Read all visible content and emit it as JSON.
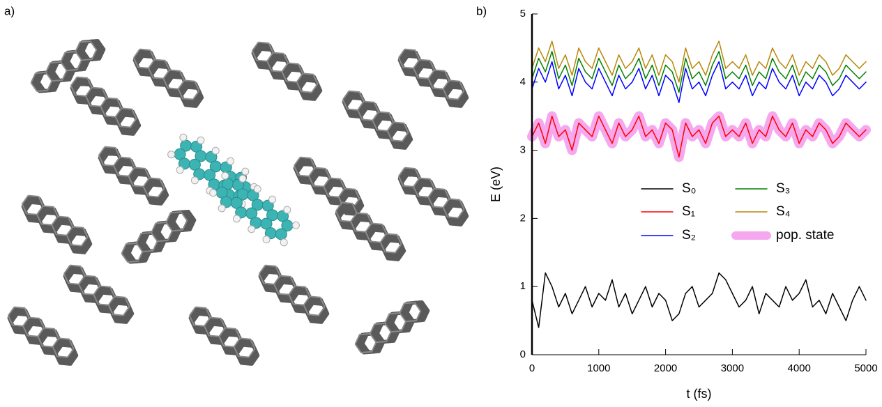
{
  "panel_labels": [
    "a)",
    "b)"
  ],
  "chart_data": {
    "type": "line",
    "xlabel": "t (fs)",
    "ylabel": "E (eV)",
    "xlim": [
      0,
      5000
    ],
    "ylim": [
      0,
      5
    ],
    "xticks": [
      0,
      1000,
      2000,
      3000,
      4000,
      5000
    ],
    "yticks": [
      0,
      1,
      2,
      3,
      4,
      5
    ],
    "x": [
      0,
      100,
      200,
      300,
      400,
      500,
      600,
      700,
      800,
      900,
      1000,
      1100,
      1200,
      1300,
      1400,
      1500,
      1600,
      1700,
      1800,
      1900,
      2000,
      2100,
      2200,
      2300,
      2400,
      2500,
      2600,
      2700,
      2800,
      2900,
      3000,
      3100,
      3200,
      3300,
      3400,
      3500,
      3600,
      3700,
      3800,
      3900,
      4000,
      4100,
      4200,
      4300,
      4400,
      4500,
      4600,
      4700,
      4800,
      4900,
      5000
    ],
    "series": [
      {
        "name": "S₀",
        "color": "#000000",
        "values": [
          0.8,
          0.4,
          1.2,
          1.0,
          0.7,
          0.9,
          0.6,
          0.8,
          1.0,
          0.7,
          0.9,
          0.8,
          1.1,
          0.7,
          0.9,
          0.6,
          0.8,
          1.0,
          0.7,
          0.9,
          0.8,
          0.5,
          0.6,
          0.9,
          1.0,
          0.7,
          0.8,
          0.9,
          1.2,
          1.1,
          0.9,
          0.7,
          0.8,
          1.0,
          0.6,
          0.9,
          0.8,
          0.7,
          1.0,
          0.8,
          0.9,
          1.1,
          0.7,
          0.8,
          0.6,
          0.9,
          0.7,
          0.5,
          0.8,
          1.0,
          0.8
        ]
      },
      {
        "name": "S₁",
        "color": "#ff0000",
        "values": [
          3.2,
          3.4,
          3.1,
          3.5,
          3.2,
          3.3,
          3.0,
          3.4,
          3.3,
          3.2,
          3.5,
          3.3,
          3.1,
          3.4,
          3.2,
          3.3,
          3.5,
          3.2,
          3.3,
          3.1,
          3.4,
          3.3,
          2.9,
          3.4,
          3.2,
          3.3,
          3.1,
          3.4,
          3.5,
          3.2,
          3.3,
          3.2,
          3.4,
          3.1,
          3.3,
          3.2,
          3.5,
          3.3,
          3.2,
          3.4,
          3.1,
          3.3,
          3.2,
          3.4,
          3.3,
          3.1,
          3.2,
          3.4,
          3.3,
          3.2,
          3.3
        ]
      },
      {
        "name": "S₂",
        "color": "#0000ff",
        "values": [
          3.9,
          4.2,
          4.0,
          4.3,
          3.9,
          4.1,
          3.8,
          4.2,
          4.0,
          3.9,
          4.2,
          4.0,
          3.8,
          4.1,
          3.9,
          4.0,
          4.2,
          3.9,
          4.1,
          3.8,
          4.1,
          4.0,
          3.7,
          4.2,
          3.9,
          4.0,
          3.8,
          4.1,
          4.3,
          3.9,
          4.0,
          3.9,
          4.1,
          3.8,
          4.0,
          3.9,
          4.2,
          4.0,
          3.9,
          4.1,
          3.8,
          4.0,
          3.9,
          4.1,
          4.0,
          3.8,
          3.9,
          4.1,
          4.0,
          3.9,
          4.0
        ]
      },
      {
        "name": "S₃",
        "color": "#008000",
        "values": [
          4.05,
          4.35,
          4.15,
          4.45,
          4.05,
          4.25,
          3.95,
          4.35,
          4.15,
          4.05,
          4.35,
          4.15,
          3.95,
          4.25,
          4.05,
          4.15,
          4.35,
          4.05,
          4.25,
          3.95,
          4.25,
          4.15,
          3.85,
          4.35,
          4.05,
          4.15,
          3.95,
          4.25,
          4.45,
          4.05,
          4.15,
          4.05,
          4.25,
          3.95,
          4.15,
          4.05,
          4.35,
          4.15,
          4.05,
          4.25,
          3.95,
          4.15,
          4.05,
          4.25,
          4.15,
          3.95,
          4.05,
          4.25,
          4.15,
          4.05,
          4.15
        ]
      },
      {
        "name": "S₄",
        "color": "#b8860b",
        "values": [
          4.2,
          4.5,
          4.3,
          4.6,
          4.2,
          4.4,
          4.1,
          4.5,
          4.3,
          4.2,
          4.5,
          4.3,
          4.1,
          4.4,
          4.2,
          4.3,
          4.5,
          4.2,
          4.4,
          4.1,
          4.4,
          4.3,
          4.0,
          4.5,
          4.2,
          4.3,
          4.1,
          4.4,
          4.6,
          4.2,
          4.3,
          4.2,
          4.4,
          4.1,
          4.3,
          4.2,
          4.5,
          4.3,
          4.2,
          4.4,
          4.1,
          4.3,
          4.2,
          4.4,
          4.3,
          4.1,
          4.2,
          4.4,
          4.3,
          4.2,
          4.3
        ]
      },
      {
        "name": "pop. state",
        "color": "#f6a8ee",
        "values": [
          3.2,
          3.4,
          3.1,
          3.5,
          3.2,
          3.3,
          3.0,
          3.4,
          3.3,
          3.2,
          3.5,
          3.3,
          3.1,
          3.4,
          3.2,
          3.3,
          3.5,
          3.2,
          3.3,
          3.1,
          3.4,
          3.3,
          2.9,
          3.4,
          3.2,
          3.3,
          3.1,
          3.4,
          3.5,
          3.2,
          3.3,
          3.2,
          3.4,
          3.1,
          3.3,
          3.2,
          3.5,
          3.3,
          3.2,
          3.4,
          3.1,
          3.3,
          3.2,
          3.4,
          3.3,
          3.1,
          3.2,
          3.4,
          3.3,
          3.2,
          3.3
        ]
      }
    ]
  }
}
